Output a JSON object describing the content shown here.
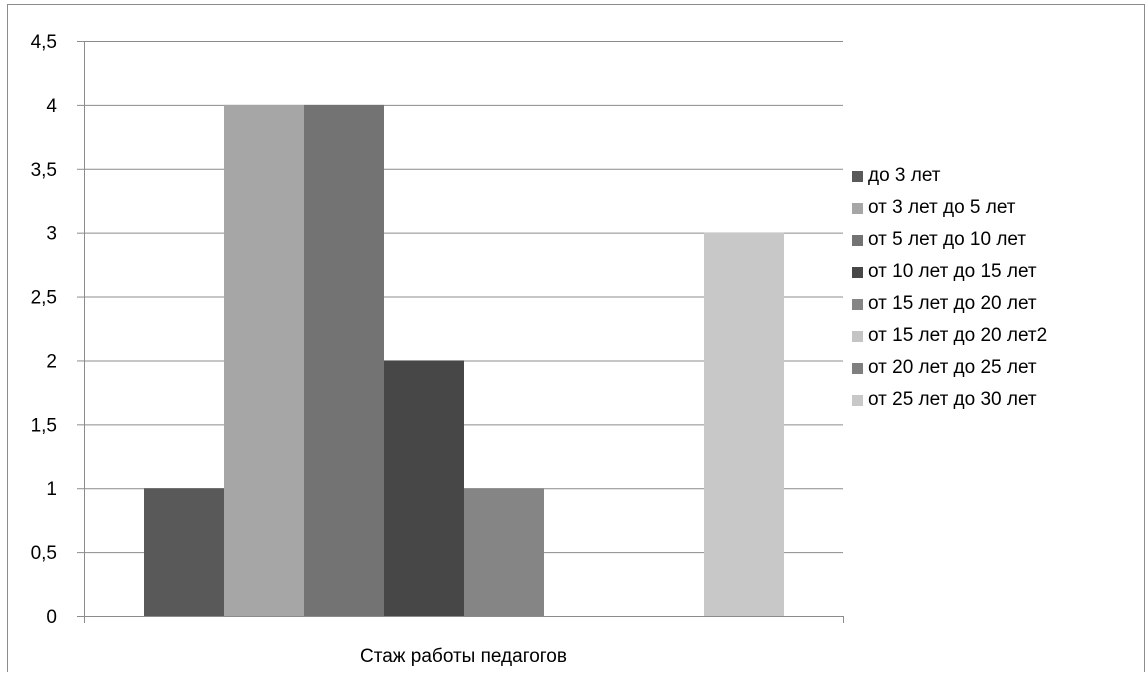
{
  "chart_data": {
    "type": "bar",
    "categories": [
      "Стаж работы педагогов"
    ],
    "series": [
      {
        "name": "до 3 лет",
        "values": [
          1
        ],
        "color": "#595959"
      },
      {
        "name": "от 3 лет до 5 лет",
        "values": [
          4
        ],
        "color": "#a6a6a6"
      },
      {
        "name": "от 5 лет до 10 лет",
        "values": [
          4
        ],
        "color": "#737373"
      },
      {
        "name": "от 10 лет до 15 лет",
        "values": [
          2
        ],
        "color": "#474747"
      },
      {
        "name": "от 15 лет до 20 лет",
        "values": [
          1
        ],
        "color": "#858585"
      },
      {
        "name": "от 15 лет до 20 лет2",
        "values": [
          0
        ],
        "color": "#c4c4c4"
      },
      {
        "name": "от 20 лет до 25 лет",
        "values": [
          0
        ],
        "color": "#7f7f7f"
      },
      {
        "name": "от 25 лет до 30 лет",
        "values": [
          3
        ],
        "color": "#c8c8c8"
      }
    ],
    "y_ticks": [
      "0",
      "0,5",
      "1",
      "1,5",
      "2",
      "2,5",
      "3",
      "3,5",
      "4",
      "4,5"
    ],
    "ylim": [
      0,
      4.5
    ],
    "grid": true,
    "legend_position": "right"
  }
}
